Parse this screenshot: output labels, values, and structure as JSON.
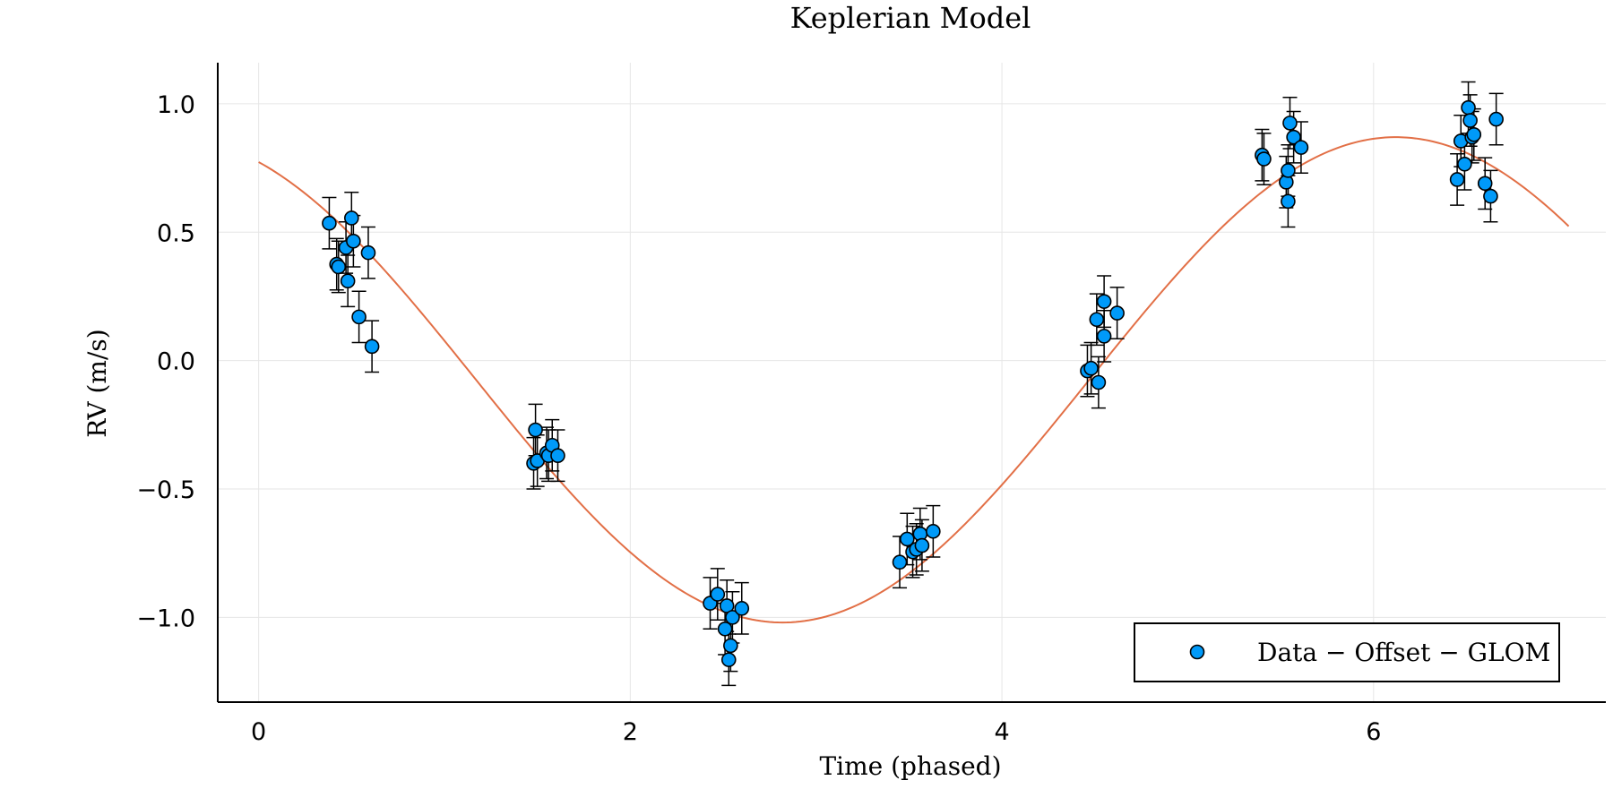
{
  "chart_data": {
    "type": "scatter",
    "title": "Keplerian Model",
    "xlabel": "Time (phased)",
    "ylabel": "RV (m/s)",
    "xlim": [
      -0.22,
      7.25
    ],
    "ylim": [
      -1.33,
      1.16
    ],
    "xticks": [
      0,
      2,
      4,
      6
    ],
    "xtick_labels": [
      "0",
      "2",
      "4",
      "6"
    ],
    "yticks": [
      -1.0,
      -0.5,
      0.0,
      0.5,
      1.0
    ],
    "ytick_labels": [
      "−1.0",
      "−0.5",
      "0.0",
      "0.5",
      "1.0"
    ],
    "grid": true,
    "legend_position": "bottom-right",
    "model": {
      "color": "#e26f46",
      "x_range": [
        0,
        7.05
      ],
      "offset": -0.075,
      "amplitude": 0.945,
      "period": 6.6,
      "phase_peak": 6.12
    },
    "series": [
      {
        "name": "Data − Offset − GLOM",
        "color": "#009af9",
        "error": 0.1,
        "points": [
          [
            0.38,
            0.535
          ],
          [
            0.42,
            0.375
          ],
          [
            0.43,
            0.365
          ],
          [
            0.47,
            0.44
          ],
          [
            0.48,
            0.31
          ],
          [
            0.5,
            0.555
          ],
          [
            0.51,
            0.465
          ],
          [
            0.54,
            0.17
          ],
          [
            0.59,
            0.42
          ],
          [
            0.61,
            0.055
          ],
          [
            1.48,
            -0.4
          ],
          [
            1.49,
            -0.27
          ],
          [
            1.5,
            -0.39
          ],
          [
            1.55,
            -0.36
          ],
          [
            1.56,
            -0.37
          ],
          [
            1.58,
            -0.33
          ],
          [
            1.61,
            -0.37
          ],
          [
            2.43,
            -0.945
          ],
          [
            2.47,
            -0.91
          ],
          [
            2.51,
            -1.045
          ],
          [
            2.52,
            -0.955
          ],
          [
            2.54,
            -1.11
          ],
          [
            2.53,
            -1.165
          ],
          [
            2.55,
            -1.0
          ],
          [
            2.6,
            -0.965
          ],
          [
            3.45,
            -0.785
          ],
          [
            3.49,
            -0.695
          ],
          [
            3.52,
            -0.745
          ],
          [
            3.54,
            -0.735
          ],
          [
            3.56,
            -0.675
          ],
          [
            3.57,
            -0.72
          ],
          [
            3.63,
            -0.665
          ],
          [
            4.46,
            -0.04
          ],
          [
            4.48,
            -0.03
          ],
          [
            4.51,
            0.16
          ],
          [
            4.52,
            -0.085
          ],
          [
            4.55,
            0.23
          ],
          [
            4.55,
            0.095
          ],
          [
            4.62,
            0.185
          ],
          [
            5.4,
            0.8
          ],
          [
            5.41,
            0.785
          ],
          [
            5.53,
            0.695
          ],
          [
            5.54,
            0.74
          ],
          [
            5.54,
            0.62
          ],
          [
            5.55,
            0.925
          ],
          [
            5.57,
            0.87
          ],
          [
            5.61,
            0.83
          ],
          [
            6.45,
            0.705
          ],
          [
            6.47,
            0.855
          ],
          [
            6.49,
            0.765
          ],
          [
            6.51,
            0.985
          ],
          [
            6.52,
            0.935
          ],
          [
            6.53,
            0.87
          ],
          [
            6.54,
            0.88
          ],
          [
            6.6,
            0.69
          ],
          [
            6.63,
            0.64
          ],
          [
            6.66,
            0.94
          ]
        ]
      }
    ]
  }
}
